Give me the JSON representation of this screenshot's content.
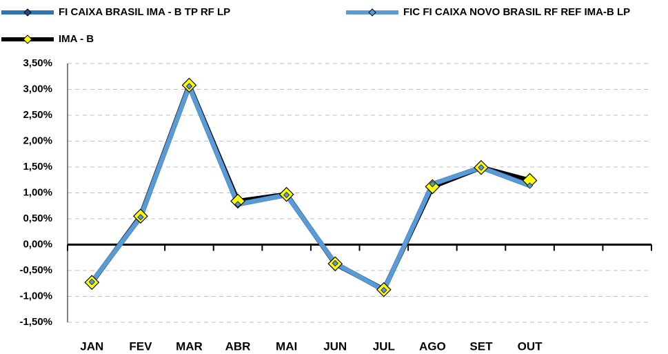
{
  "chart_data": {
    "type": "line",
    "categories": [
      "JAN",
      "FEV",
      "MAR",
      "ABR",
      "MAI",
      "JUN",
      "JUL",
      "AGO",
      "SET",
      "OUT",
      null,
      null
    ],
    "series": [
      {
        "name": "FI CAIXA BRASIL IMA - B TP RF LP",
        "color": "#2e75b6",
        "marker_color": "#1f4e79",
        "values": [
          -0.72,
          0.53,
          3.06,
          0.78,
          0.96,
          -0.36,
          -0.88,
          1.17,
          1.49,
          1.14,
          null,
          null
        ]
      },
      {
        "name": "FIC FI CAIXA NOVO BRASIL RF REF IMA-B LP",
        "color": "#5b9bd5",
        "marker_color": "#5b9bd5",
        "values": [
          -0.72,
          0.53,
          3.06,
          0.78,
          0.96,
          -0.36,
          -0.88,
          1.17,
          1.49,
          1.14,
          null,
          null
        ]
      },
      {
        "name": "IMA - B",
        "color": "#000000",
        "marker_color": "#ffff00",
        "values": [
          -0.73,
          0.55,
          3.08,
          0.84,
          0.97,
          -0.37,
          -0.87,
          1.12,
          1.49,
          1.24,
          null,
          null
        ]
      }
    ],
    "ylim": [
      -1.5,
      3.5
    ],
    "yticks": [
      {
        "value": -1.5,
        "label": "-1,50%"
      },
      {
        "value": -1.0,
        "label": "-1,00%"
      },
      {
        "value": -0.5,
        "label": "-0,50%"
      },
      {
        "value": 0,
        "label": "0,00%"
      },
      {
        "value": 0.5,
        "label": "0,50%"
      },
      {
        "value": 1.0,
        "label": "1,00%"
      },
      {
        "value": 1.5,
        "label": "1,50%"
      },
      {
        "value": 2.0,
        "label": "2,00%"
      },
      {
        "value": 2.5,
        "label": "2,50%"
      },
      {
        "value": 3.0,
        "label": "3,00%"
      },
      {
        "value": 3.5,
        "label": "3,50%"
      }
    ],
    "grid": true
  }
}
